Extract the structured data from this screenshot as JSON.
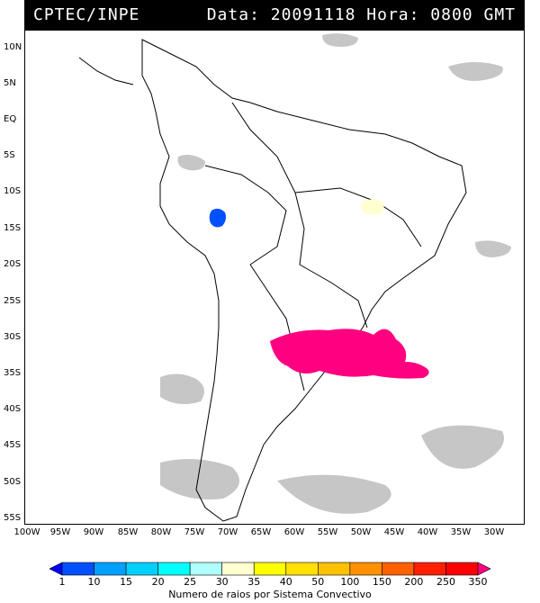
{
  "header": {
    "source": "CPTEC/INPE",
    "datetime": "Data: 20091118 Hora: 0800 GMT"
  },
  "axes": {
    "lat_labels": [
      "10N",
      "5N",
      "EQ",
      "5S",
      "10S",
      "15S",
      "20S",
      "25S",
      "30S",
      "35S",
      "40S",
      "45S",
      "50S",
      "55S"
    ],
    "lon_labels": [
      "100W",
      "95W",
      "90W",
      "85W",
      "80W",
      "75W",
      "70W",
      "65W",
      "60W",
      "55W",
      "50W",
      "45W",
      "40W",
      "35W",
      "30W"
    ]
  },
  "legend": {
    "title": "Numero de raios por Sistema Convectivo",
    "values": [
      "1",
      "10",
      "15",
      "20",
      "25",
      "30",
      "35",
      "40",
      "50",
      "100",
      "150",
      "200",
      "250",
      "350"
    ],
    "colors": [
      "#0000ff",
      "#0050ff",
      "#00a0ff",
      "#00d0ff",
      "#00ffff",
      "#b0ffff",
      "#ffffd0",
      "#ffff00",
      "#ffe000",
      "#ffc000",
      "#ff9000",
      "#ff6000",
      "#ff2000",
      "#ff0000",
      "#ff0080"
    ]
  },
  "systems": [
    {
      "name": "Bolivia cluster",
      "color": "#0050ff"
    },
    {
      "name": "Central Brazil cluster",
      "color": "#ffffd0"
    },
    {
      "name": "Southern Brazil / Uruguay cluster",
      "color": "#ff0080"
    }
  ]
}
